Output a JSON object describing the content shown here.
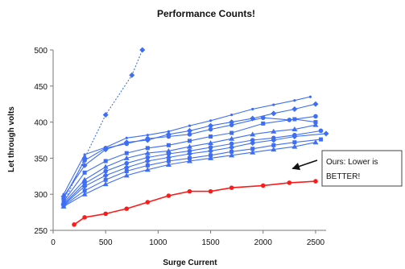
{
  "chart_data": {
    "type": "line",
    "title": "Performance Counts!",
    "xlabel": "Surge Current",
    "ylabel": "Let through volts",
    "xlim": [
      0,
      2600
    ],
    "ylim": [
      250,
      500
    ],
    "xticks": [
      0,
      500,
      1000,
      1500,
      2000,
      2500
    ],
    "yticks": [
      250,
      300,
      350,
      400,
      450,
      500
    ],
    "grid": false,
    "legend": "none",
    "colors": {
      "highlight": "#ff1a1a",
      "others": "#3d6ef5"
    },
    "annotation": {
      "lines": [
        "Ours: Lower is",
        "BETTER!"
      ],
      "target": {
        "x": 2250,
        "y": 330
      }
    },
    "series": [
      {
        "highlight": true,
        "marker": "circle",
        "values": [
          [
            200,
            258
          ],
          [
            300,
            268
          ],
          [
            500,
            273
          ],
          [
            700,
            280
          ],
          [
            900,
            289
          ],
          [
            1100,
            298
          ],
          [
            1300,
            304
          ],
          [
            1500,
            304
          ],
          [
            1700,
            309
          ],
          [
            2000,
            312
          ],
          [
            2250,
            316
          ],
          [
            2500,
            318
          ]
        ]
      },
      {
        "marker": "diamond",
        "dashed": true,
        "values": [
          [
            100,
            287
          ],
          [
            300,
            350
          ],
          [
            500,
            410
          ],
          [
            750,
            465
          ],
          [
            850,
            500
          ]
        ]
      },
      {
        "marker": "dot",
        "values": [
          [
            100,
            300
          ],
          [
            300,
            355
          ],
          [
            500,
            365
          ],
          [
            700,
            378
          ],
          [
            900,
            382
          ],
          [
            1100,
            387
          ],
          [
            1300,
            395
          ],
          [
            1500,
            402
          ],
          [
            1700,
            410
          ],
          [
            1900,
            418
          ],
          [
            2100,
            424
          ],
          [
            2300,
            430
          ],
          [
            2450,
            435
          ]
        ]
      },
      {
        "marker": "diamond",
        "values": [
          [
            100,
            297
          ],
          [
            300,
            340
          ],
          [
            500,
            362
          ],
          [
            700,
            372
          ],
          [
            900,
            375
          ],
          [
            1100,
            383
          ],
          [
            1300,
            388
          ],
          [
            1500,
            395
          ],
          [
            1700,
            400
          ],
          [
            1900,
            405
          ],
          [
            2100,
            412
          ],
          [
            2300,
            418
          ],
          [
            2500,
            425
          ]
        ]
      },
      {
        "marker": "circle",
        "values": [
          [
            100,
            294
          ],
          [
            300,
            347
          ],
          [
            500,
            364
          ],
          [
            700,
            370
          ],
          [
            900,
            377
          ],
          [
            1100,
            380
          ],
          [
            1300,
            383
          ],
          [
            1500,
            390
          ],
          [
            1700,
            396
          ],
          [
            2000,
            406
          ],
          [
            2250,
            403
          ],
          [
            2500,
            408
          ]
        ]
      },
      {
        "marker": "square",
        "values": [
          [
            100,
            290
          ],
          [
            300,
            330
          ],
          [
            500,
            346
          ],
          [
            700,
            357
          ],
          [
            900,
            364
          ],
          [
            1100,
            368
          ],
          [
            1300,
            374
          ],
          [
            1500,
            380
          ],
          [
            1700,
            385
          ],
          [
            2000,
            398
          ],
          [
            2300,
            404
          ],
          [
            2500,
            400
          ]
        ]
      },
      {
        "marker": "triangle",
        "values": [
          [
            100,
            288
          ],
          [
            300,
            320
          ],
          [
            500,
            338
          ],
          [
            700,
            350
          ],
          [
            900,
            357
          ],
          [
            1100,
            360
          ],
          [
            1300,
            366
          ],
          [
            1500,
            371
          ],
          [
            1700,
            377
          ],
          [
            1900,
            383
          ],
          [
            2100,
            387
          ],
          [
            2300,
            390
          ],
          [
            2500,
            396
          ]
        ]
      },
      {
        "marker": "circle",
        "values": [
          [
            100,
            286
          ],
          [
            300,
            315
          ],
          [
            500,
            332
          ],
          [
            700,
            343
          ],
          [
            900,
            351
          ],
          [
            1100,
            356
          ],
          [
            1300,
            360
          ],
          [
            1500,
            365
          ],
          [
            1700,
            370
          ],
          [
            1900,
            375
          ],
          [
            2100,
            378
          ],
          [
            2300,
            382
          ],
          [
            2550,
            388
          ]
        ]
      },
      {
        "marker": "diamond",
        "values": [
          [
            100,
            285
          ],
          [
            300,
            311
          ],
          [
            500,
            326
          ],
          [
            700,
            337
          ],
          [
            900,
            346
          ],
          [
            1100,
            351
          ],
          [
            1300,
            356
          ],
          [
            1500,
            360
          ],
          [
            1700,
            365
          ],
          [
            1900,
            371
          ],
          [
            2100,
            375
          ],
          [
            2300,
            380
          ],
          [
            2600,
            384
          ]
        ]
      },
      {
        "marker": "square",
        "values": [
          [
            100,
            284
          ],
          [
            300,
            305
          ],
          [
            500,
            320
          ],
          [
            700,
            332
          ],
          [
            900,
            340
          ],
          [
            1100,
            346
          ],
          [
            1300,
            350
          ],
          [
            1500,
            354
          ],
          [
            1700,
            359
          ],
          [
            1900,
            363
          ],
          [
            2100,
            368
          ],
          [
            2300,
            372
          ],
          [
            2550,
            376
          ]
        ]
      },
      {
        "marker": "triangle",
        "values": [
          [
            100,
            283
          ],
          [
            300,
            300
          ],
          [
            500,
            314
          ],
          [
            700,
            326
          ],
          [
            900,
            334
          ],
          [
            1100,
            341
          ],
          [
            1300,
            346
          ],
          [
            1500,
            350
          ],
          [
            1700,
            354
          ],
          [
            1900,
            358
          ],
          [
            2100,
            362
          ],
          [
            2300,
            366
          ],
          [
            2500,
            372
          ]
        ]
      }
    ]
  }
}
